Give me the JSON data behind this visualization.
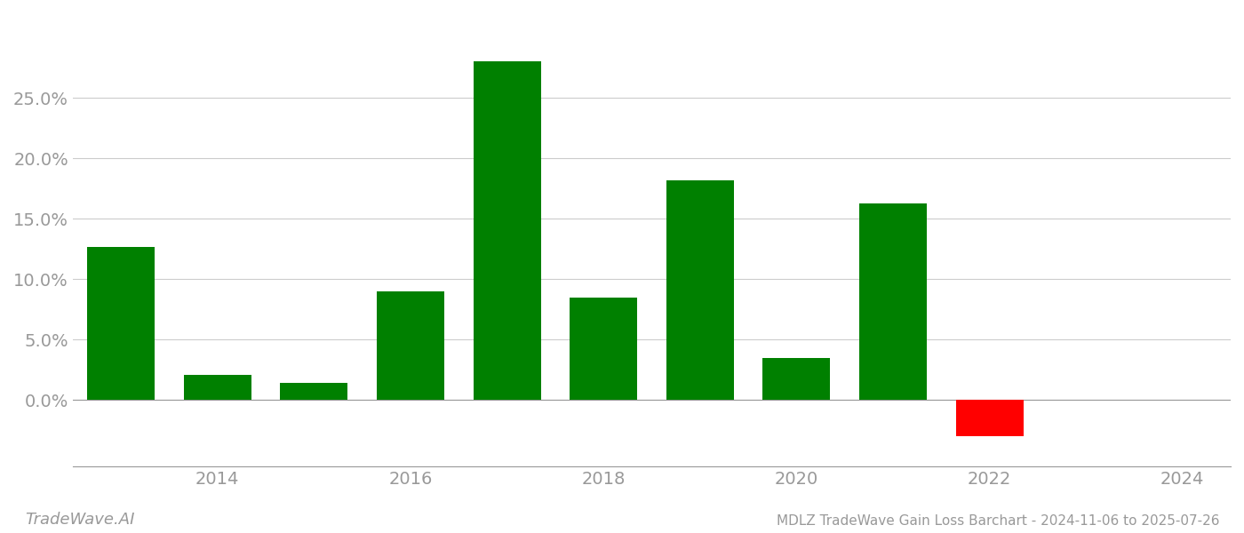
{
  "years": [
    2013,
    2014,
    2015,
    2016,
    2017,
    2018,
    2019,
    2020,
    2021,
    2022,
    2023
  ],
  "values": [
    0.127,
    0.021,
    0.014,
    0.09,
    0.28,
    0.085,
    0.182,
    0.035,
    0.163,
    -0.03,
    0.0
  ],
  "bar_colors": [
    "#008000",
    "#008000",
    "#008000",
    "#008000",
    "#008000",
    "#008000",
    "#008000",
    "#008000",
    "#008000",
    "#ff0000",
    "#008000"
  ],
  "title": "MDLZ TradeWave Gain Loss Barchart - 2024-11-06 to 2025-07-26",
  "watermark": "TradeWave.AI",
  "background_color": "#ffffff",
  "grid_color": "#cccccc",
  "axis_color": "#999999",
  "ylim_min": -0.055,
  "ylim_max": 0.32,
  "yticks": [
    0.0,
    0.05,
    0.1,
    0.15,
    0.2,
    0.25
  ],
  "xticks": [
    2014,
    2016,
    2018,
    2020,
    2022,
    2024
  ],
  "bar_width": 0.7,
  "xlim_min": 2012.5,
  "xlim_max": 2024.5,
  "title_fontsize": 11,
  "tick_fontsize": 14,
  "watermark_fontsize": 13
}
